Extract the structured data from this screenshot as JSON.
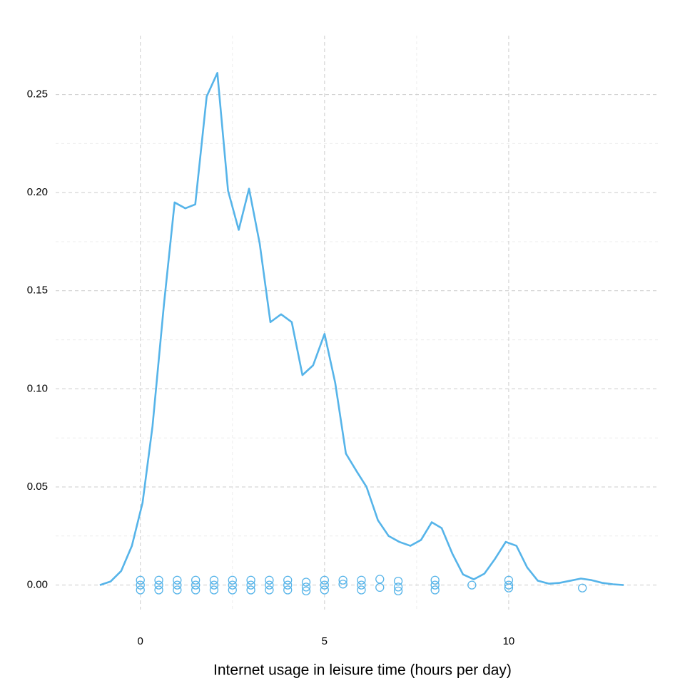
{
  "chart_data": {
    "type": "line",
    "x_label": "Internet usage in leisure time (hours per day)",
    "xlim": [
      -2.3,
      14.05
    ],
    "ylim": [
      -0.0125,
      0.28
    ],
    "xticks": [
      0,
      5,
      10
    ],
    "yticks": [
      {
        "value": 0,
        "label": "0.00"
      },
      0.05,
      {
        "value": 0.1,
        "label": "0.10"
      },
      0.15,
      {
        "value": 0.2,
        "label": "0.20"
      },
      0.25
    ],
    "x_minor_ticks": [
      2.5,
      7.5
    ],
    "y_minor_ticks": [
      0.025,
      0.075,
      0.125,
      0.175,
      0.225
    ],
    "grid": true,
    "series": [
      {
        "type": "line",
        "color": "#56b4e9",
        "x": [
          -1.1,
          -0.81,
          -0.52,
          -0.23,
          0.06,
          0.33,
          0.64,
          0.93,
          1.22,
          1.49,
          1.8,
          2.09,
          2.38,
          2.67,
          2.95,
          3.24,
          3.53,
          3.82,
          4.11,
          4.4,
          4.69,
          5.0,
          5.29,
          5.58,
          5.87,
          6.14,
          6.45,
          6.74,
          7.03,
          7.33,
          7.62,
          7.91,
          8.18,
          8.47,
          8.76,
          9.05,
          9.34,
          9.63,
          9.92,
          10.21,
          10.5,
          10.79,
          11.09,
          11.38,
          11.67,
          11.96,
          12.25,
          12.54,
          12.83,
          13.12
        ],
        "values": [
          0,
          0.0018,
          0.0072,
          0.02,
          0.042,
          0.081,
          0.143,
          0.195,
          0.192,
          0.194,
          0.249,
          0.261,
          0.201,
          0.181,
          0.202,
          0.174,
          0.134,
          0.138,
          0.134,
          0.107,
          0.112,
          0.128,
          0.103,
          0.067,
          0.058,
          0.05,
          0.033,
          0.025,
          0.022,
          0.02,
          0.023,
          0.032,
          0.029,
          0.016,
          0.0054,
          0.0029,
          0.0058,
          0.0134,
          0.022,
          0.02,
          0.009,
          0.0022,
          0.0007,
          0.0011,
          0.0022,
          0.0033,
          0.0025,
          0.0011,
          0.0004,
          0
        ]
      },
      {
        "type": "scatter",
        "color": "#56b4e9",
        "x": [
          0,
          0,
          0,
          0.5,
          0.5,
          0.5,
          1,
          1,
          1,
          1.5,
          1.5,
          1.5,
          2,
          2,
          2,
          2.5,
          2.5,
          2.5,
          3,
          3,
          3,
          3.5,
          3.5,
          3.5,
          4,
          4,
          4,
          4.5,
          4.5,
          4.5,
          5,
          5,
          5,
          5.5,
          5.5,
          6,
          6,
          6,
          6.5,
          6.5,
          7,
          7,
          7,
          8,
          8,
          8,
          9,
          10,
          10,
          10,
          12
        ],
        "values": [
          0.0025,
          0,
          -0.0025,
          0.0025,
          0,
          -0.0025,
          0.0025,
          0,
          -0.0025,
          0.0025,
          0,
          -0.0025,
          0.0025,
          0,
          -0.0025,
          0.0025,
          0,
          -0.0025,
          0.0025,
          0,
          -0.0025,
          0.0025,
          0,
          -0.0025,
          0.0025,
          0,
          -0.0025,
          0.0015,
          -0.001,
          -0.003,
          0.0025,
          0,
          -0.0025,
          0.0025,
          0.0005,
          0.0025,
          0,
          -0.0025,
          0.003,
          -0.0012,
          0.002,
          -0.001,
          -0.003,
          0.0025,
          0,
          -0.0025,
          0,
          0.0025,
          0,
          -0.0015,
          -0.0015
        ]
      }
    ]
  }
}
